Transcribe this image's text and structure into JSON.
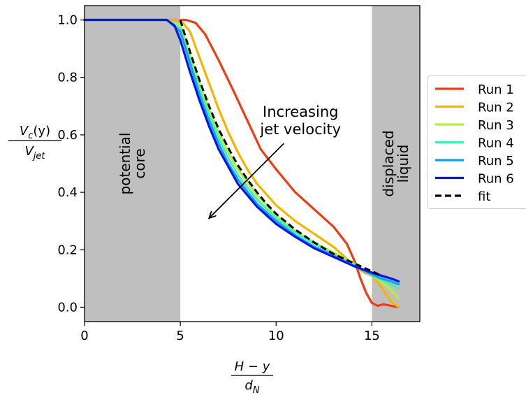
{
  "chart_data": {
    "type": "line",
    "xlim": [
      0,
      17.5
    ],
    "ylim": [
      -0.05,
      1.05
    ],
    "xticks": [
      0,
      5,
      10,
      15
    ],
    "yticks": [
      0.0,
      0.2,
      0.4,
      0.6,
      0.8,
      1.0
    ],
    "xtick_labels": [
      "0",
      "5",
      "10",
      "15"
    ],
    "ytick_labels": [
      "0.0",
      "0.2",
      "0.4",
      "0.6",
      "0.8",
      "1.0"
    ],
    "xlabel": {
      "num": "H − y",
      "den": "d",
      "den_sub": "N"
    },
    "ylabel": {
      "num": "V",
      "num_sub": "c",
      "num_suffix": "(y)",
      "den": "V",
      "den_sub": "jet"
    },
    "grid": false,
    "legend_placement": "outside-right",
    "regions": [
      {
        "x0": 0,
        "x1": 5,
        "color": "#bfbfbf",
        "label_lines": [
          "potential",
          "core"
        ]
      },
      {
        "x0": 15,
        "x1": 17.5,
        "color": "#bfbfbf",
        "label_lines": [
          "displaced",
          "liquid"
        ]
      }
    ],
    "annotation": {
      "lines": [
        "Increasing",
        "jet velocity"
      ],
      "arrow_from": [
        10.4,
        0.57
      ],
      "arrow_to": [
        6.5,
        0.31
      ]
    },
    "series": [
      {
        "name": "Run 1",
        "color": "#f03c14",
        "dashed": false,
        "x": [
          0,
          4.3,
          5.3,
          5.8,
          6.3,
          7.0,
          7.8,
          8.5,
          9.2,
          10.0,
          11.0,
          12.0,
          13.0,
          13.7,
          14.1,
          14.4,
          14.7,
          15.0,
          15.3,
          15.6,
          16.0,
          16.4
        ],
        "y": [
          1.0,
          1.0,
          1.0,
          0.99,
          0.95,
          0.86,
          0.75,
          0.65,
          0.55,
          0.48,
          0.4,
          0.34,
          0.28,
          0.22,
          0.16,
          0.1,
          0.05,
          0.015,
          0.005,
          0.01,
          0.005,
          0.0
        ]
      },
      {
        "name": "Run 2",
        "color": "#f5b400",
        "dashed": false,
        "x": [
          0,
          4.3,
          5.0,
          5.5,
          6.0,
          6.5,
          7.0,
          7.5,
          8.0,
          8.5,
          9.0,
          10.0,
          11.0,
          12.0,
          13.0,
          14.0,
          14.6,
          15.0,
          15.5,
          16.0,
          16.4
        ],
        "y": [
          1.0,
          1.0,
          1.0,
          0.96,
          0.87,
          0.78,
          0.69,
          0.61,
          0.54,
          0.48,
          0.43,
          0.355,
          0.3,
          0.255,
          0.21,
          0.15,
          0.12,
          0.11,
          0.07,
          0.02,
          0.0
        ]
      },
      {
        "name": "Run 3",
        "color": "#b4f03c",
        "dashed": false,
        "x": [
          0,
          4.3,
          5.0,
          5.5,
          6.0,
          6.5,
          7.0,
          7.5,
          8.0,
          9.0,
          10.0,
          11.0,
          12.0,
          13.0,
          14.0,
          15.0,
          15.5,
          16.0,
          16.4
        ],
        "y": [
          1.0,
          1.0,
          0.98,
          0.88,
          0.78,
          0.69,
          0.61,
          0.54,
          0.48,
          0.39,
          0.32,
          0.265,
          0.225,
          0.19,
          0.155,
          0.11,
          0.09,
          0.06,
          0.03
        ]
      },
      {
        "name": "Run 4",
        "color": "#46f0b4",
        "dashed": false,
        "x": [
          0,
          4.3,
          5.0,
          5.5,
          6.0,
          6.5,
          7.0,
          7.5,
          8.0,
          9.0,
          10.0,
          11.0,
          12.0,
          13.0,
          14.0,
          15.0,
          15.5,
          16.0,
          16.4
        ],
        "y": [
          1.0,
          1.0,
          0.97,
          0.86,
          0.76,
          0.67,
          0.59,
          0.52,
          0.46,
          0.375,
          0.31,
          0.26,
          0.22,
          0.185,
          0.15,
          0.11,
          0.095,
          0.08,
          0.065
        ]
      },
      {
        "name": "Run 5",
        "color": "#14a0f0",
        "dashed": false,
        "x": [
          0,
          4.3,
          5.0,
          5.5,
          6.0,
          6.5,
          7.0,
          7.5,
          8.0,
          9.0,
          10.0,
          11.0,
          12.0,
          13.0,
          14.0,
          15.0,
          15.5,
          16.0,
          16.4
        ],
        "y": [
          1.0,
          1.0,
          0.96,
          0.85,
          0.74,
          0.65,
          0.57,
          0.5,
          0.445,
          0.36,
          0.3,
          0.25,
          0.21,
          0.18,
          0.145,
          0.115,
          0.1,
          0.09,
          0.08
        ]
      },
      {
        "name": "Run 6",
        "color": "#0a14e6",
        "dashed": false,
        "x": [
          0,
          4.3,
          4.7,
          5.0,
          5.5,
          6.0,
          6.5,
          7.0,
          7.5,
          8.0,
          9.0,
          10.0,
          11.0,
          12.0,
          13.0,
          14.0,
          15.0,
          15.5,
          16.0,
          16.4
        ],
        "y": [
          1.0,
          1.0,
          0.98,
          0.93,
          0.82,
          0.72,
          0.63,
          0.55,
          0.49,
          0.43,
          0.35,
          0.29,
          0.245,
          0.205,
          0.175,
          0.145,
          0.12,
          0.11,
          0.1,
          0.09
        ]
      },
      {
        "name": "fit",
        "color": "#000000",
        "dashed": true,
        "x": [
          5.0,
          5.5,
          6.0,
          6.5,
          7.0,
          7.5,
          8.0,
          8.5,
          9.0,
          9.5,
          10.0,
          11.0,
          12.0,
          13.0,
          14.0,
          15.0,
          15.5
        ],
        "y": [
          1.0,
          0.89,
          0.79,
          0.7,
          0.62,
          0.555,
          0.495,
          0.445,
          0.4,
          0.36,
          0.325,
          0.27,
          0.225,
          0.185,
          0.155,
          0.125,
          0.11
        ]
      }
    ]
  }
}
